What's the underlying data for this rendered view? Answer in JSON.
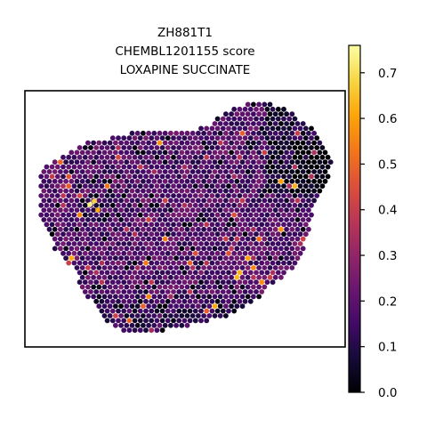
{
  "chart_data": {
    "type": "scatter",
    "plot_kind": "spatial hexagonal spot map",
    "title_lines": [
      "ZH881T1",
      "CHEMBL1201155 score",
      "LOXAPINE SUCCINATE"
    ],
    "xlabel": "",
    "ylabel": "",
    "axis_ticks_visible": false,
    "grid": false,
    "colorbar": {
      "colormap": "inferno",
      "range": [
        0.0,
        0.76
      ],
      "ticks": [
        "0.0",
        "0.1",
        "0.2",
        "0.3",
        "0.4",
        "0.5",
        "0.6",
        "0.7"
      ],
      "tick_values": [
        0.0,
        0.1,
        0.2,
        0.3,
        0.4,
        0.5,
        0.6,
        0.7
      ],
      "placement": "right"
    },
    "value_distribution": {
      "typical_range": [
        0.05,
        0.3
      ],
      "dominant_value": 0.18,
      "max_value": 0.76,
      "low_value_regions": [
        "upper-right lobe",
        "bottom edge",
        "left-center gap"
      ],
      "high_value_spots": [
        "scattered orange/yellow spots, a few near left-center"
      ]
    }
  }
}
